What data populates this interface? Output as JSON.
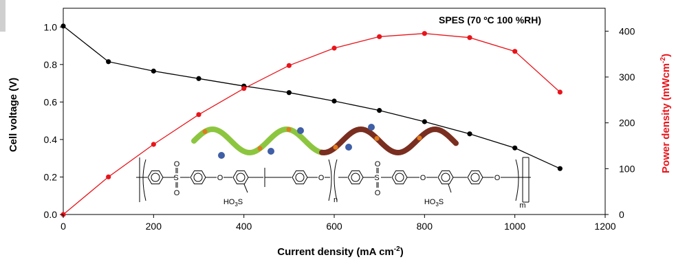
{
  "chart_data": {
    "type": "line",
    "title": "SPES (70 ºC 100 %RH)",
    "xlabel": "Current density (mA cm",
    "xlabel_sup": "-2",
    "xlabel_end": ")",
    "ylabel": "Cell voltage (V)",
    "y2label": "Power density (mWcm",
    "y2label_sup": "-2",
    "y2label_end": ")",
    "xlim": [
      0,
      1200
    ],
    "ylim": [
      0,
      1.1
    ],
    "y2lim": [
      0,
      450
    ],
    "x_ticks": [
      0,
      200,
      400,
      600,
      800,
      1000,
      1200
    ],
    "y_ticks": [
      0.0,
      0.2,
      0.4,
      0.6,
      0.8,
      1.0
    ],
    "y_tick_labels": [
      "0.0",
      "0.2",
      "0.4",
      "0.6",
      "0.8",
      "1.0"
    ],
    "y2_ticks": [
      0,
      100,
      200,
      300,
      400
    ],
    "grid": false,
    "legend": "none",
    "series": [
      {
        "axis": "left",
        "color": "#000000",
        "x": [
          0,
          100,
          200,
          300,
          400,
          500,
          600,
          700,
          800,
          900,
          1000,
          1100
        ],
        "y": [
          1.005,
          0.815,
          0.765,
          0.725,
          0.685,
          0.65,
          0.605,
          0.555,
          0.495,
          0.43,
          0.355,
          0.245
        ]
      },
      {
        "axis": "right",
        "color": "#e8141a",
        "x": [
          0,
          100,
          200,
          300,
          400,
          500,
          600,
          700,
          800,
          900,
          1000,
          1100
        ],
        "y": [
          0,
          82,
          153,
          218,
          275,
          325,
          363,
          388,
          395,
          386,
          356,
          267
        ]
      }
    ]
  },
  "inset": {
    "so2_label": "S",
    "o_label": "O",
    "ho3s_label": "HO",
    "ho3s_sub": "3",
    "ho3s_s": "S",
    "n_label": "n",
    "m_label": "m"
  }
}
